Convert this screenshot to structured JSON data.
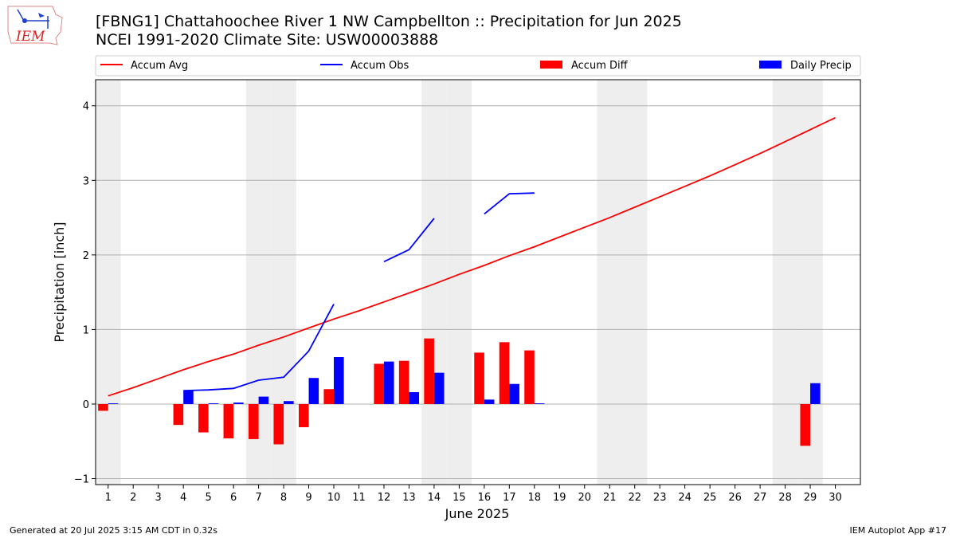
{
  "header": {
    "title_line1": "[FBNG1] Chattahoochee River 1 NW Campbellton :: Precipitation for Jun 2025",
    "title_line2": "NCEI 1991-2020 Climate Site: USW00003888",
    "logo_text": "IEM"
  },
  "footer": {
    "generated": "Generated at 20 Jul 2025 3:15 AM CDT in 0.32s",
    "app": "IEM Autoplot App #17"
  },
  "colors": {
    "avg": "#ff0000",
    "obs": "#0000ff",
    "diff": "#ff0000",
    "daily": "#0000ff",
    "weekend": "#eeeeee",
    "grid": "#b0b0b0"
  },
  "chart_data": {
    "type": "bar",
    "xlabel": "June 2025",
    "ylabel": "Precipitation [inch]",
    "ylim": [
      -1.08,
      4.35
    ],
    "xlim": [
      0.5,
      31.0
    ],
    "yticks": [
      -1,
      0,
      1,
      2,
      3,
      4
    ],
    "grid": "y-major",
    "legend": {
      "placement": "top",
      "entries": [
        "Accum Avg",
        "Accum Obs",
        "Accum Diff",
        "Daily Precip"
      ]
    },
    "weekend_days": [
      1,
      7,
      8,
      14,
      15,
      21,
      22,
      28,
      29
    ],
    "days": [
      1,
      2,
      3,
      4,
      5,
      6,
      7,
      8,
      9,
      10,
      11,
      12,
      13,
      14,
      15,
      16,
      17,
      18,
      19,
      20,
      21,
      22,
      23,
      24,
      25,
      26,
      27,
      28,
      29,
      30
    ],
    "series": [
      {
        "name": "Accum Avg",
        "kind": "line",
        "values": [
          0.11,
          0.22,
          0.34,
          0.46,
          0.57,
          0.67,
          0.79,
          0.9,
          1.02,
          1.14,
          1.25,
          1.37,
          1.49,
          1.61,
          1.74,
          1.86,
          1.99,
          2.11,
          2.24,
          2.37,
          2.5,
          2.64,
          2.78,
          2.92,
          3.06,
          3.21,
          3.36,
          3.52,
          3.68,
          3.84
        ]
      },
      {
        "name": "Accum Obs",
        "kind": "line",
        "values": [
          null,
          null,
          null,
          0.18,
          0.19,
          0.21,
          0.32,
          0.36,
          0.71,
          1.34,
          null,
          1.91,
          2.07,
          2.49,
          null,
          2.55,
          2.82,
          2.83,
          null,
          null,
          null,
          null,
          null,
          null,
          null,
          null,
          null,
          null,
          null,
          null
        ]
      },
      {
        "name": "Accum Diff",
        "kind": "bar",
        "values": [
          -0.09,
          null,
          null,
          -0.28,
          -0.38,
          -0.46,
          -0.47,
          -0.54,
          -0.31,
          0.2,
          null,
          0.54,
          0.58,
          0.88,
          null,
          0.69,
          0.83,
          0.72,
          null,
          null,
          null,
          null,
          null,
          null,
          null,
          null,
          null,
          null,
          -0.56,
          null
        ]
      },
      {
        "name": "Daily Precip",
        "kind": "bar",
        "values": [
          0.01,
          null,
          null,
          0.18,
          0.01,
          0.02,
          0.1,
          0.04,
          0.35,
          0.63,
          null,
          0.57,
          0.16,
          0.42,
          null,
          0.06,
          0.27,
          0.01,
          null,
          null,
          null,
          null,
          null,
          null,
          null,
          null,
          null,
          null,
          0.28,
          null
        ]
      }
    ]
  }
}
